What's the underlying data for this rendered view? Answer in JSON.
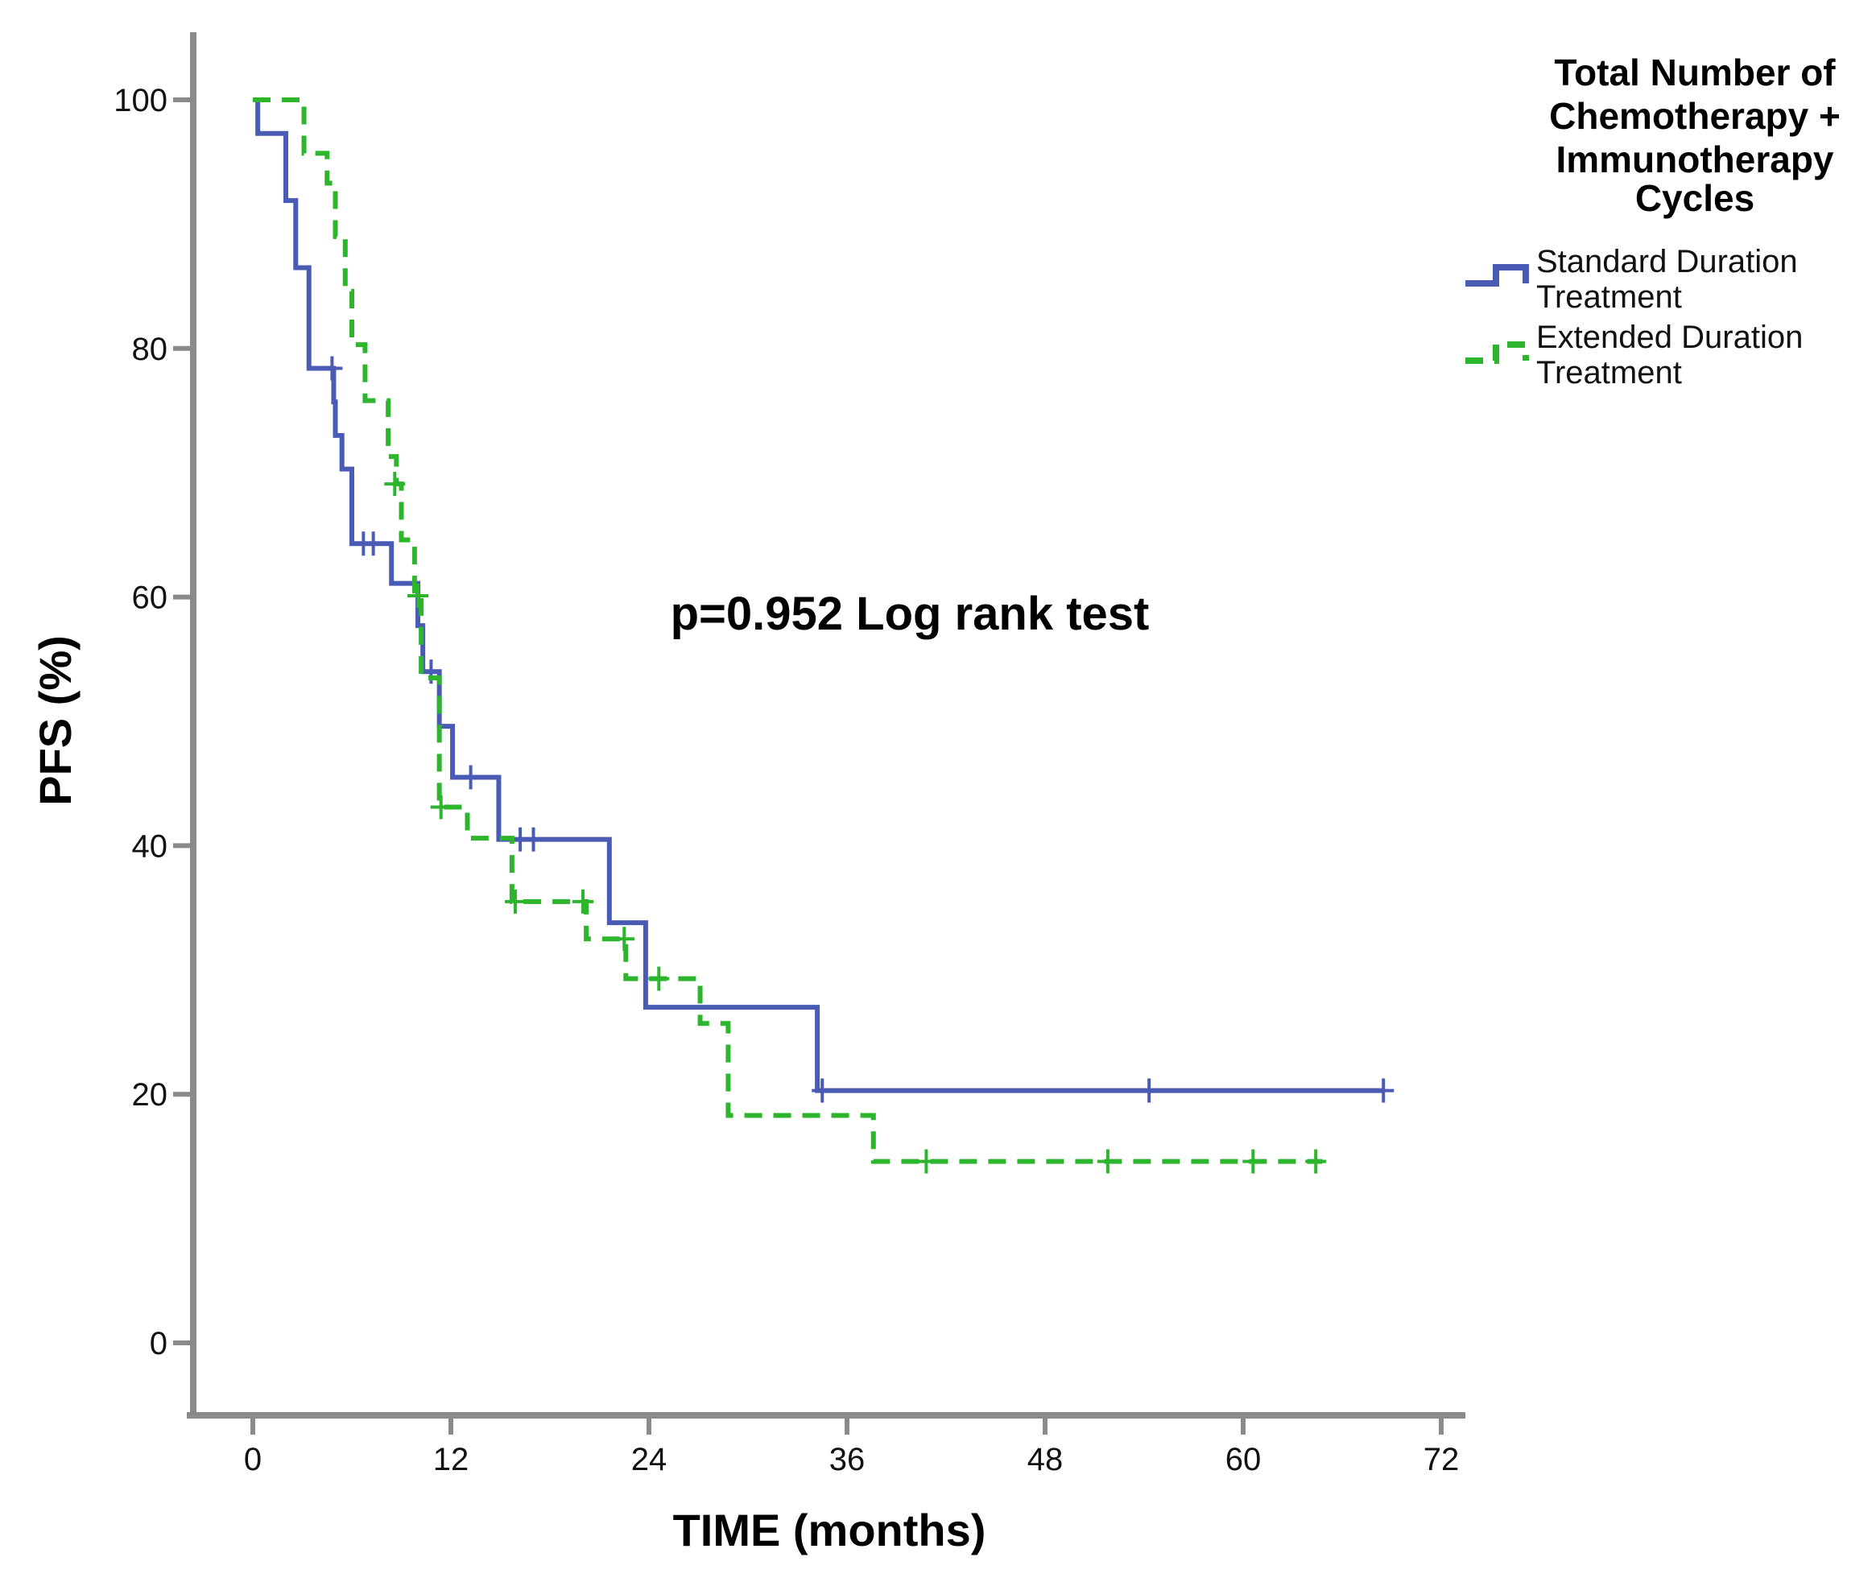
{
  "chart_data": {
    "type": "line",
    "subtype": "kaplan-meier",
    "xlabel": "TIME (months)",
    "ylabel": "PFS (%)",
    "xlim": [
      0,
      72
    ],
    "ylim": [
      0,
      100
    ],
    "xticks": [
      "0",
      "12",
      "24",
      "36",
      "48",
      "60",
      "72"
    ],
    "yticks": [
      "0",
      "20",
      "40",
      "60",
      "80",
      "100"
    ],
    "annotation": "p=0.952 Log rank test",
    "legend": {
      "title_lines": [
        "Total Number of",
        "Chemotherapy +",
        "Immunotherapy",
        "Cycles"
      ],
      "placement": "right"
    },
    "series": [
      {
        "name_lines": [
          "Standard Duration",
          "Treatment"
        ],
        "color": "#4a5bb5",
        "style": "solid",
        "steps": [
          [
            0,
            100
          ],
          [
            0.3,
            97.3
          ],
          [
            2.0,
            94.6
          ],
          [
            2.0,
            91.9
          ],
          [
            2.6,
            89.2
          ],
          [
            2.6,
            86.5
          ],
          [
            3.4,
            83.8
          ],
          [
            3.4,
            78.4
          ],
          [
            4.9,
            75.7
          ],
          [
            5.0,
            73.0
          ],
          [
            5.4,
            70.3
          ],
          [
            6.0,
            67.6
          ],
          [
            6.0,
            64.3
          ],
          [
            8.4,
            61.1
          ],
          [
            10.0,
            57.7
          ],
          [
            10.3,
            54.0
          ],
          [
            11.3,
            49.6
          ],
          [
            12.1,
            45.5
          ],
          [
            14.9,
            40.5
          ],
          [
            21.6,
            33.8
          ],
          [
            23.8,
            27.0
          ],
          [
            34.2,
            20.3
          ],
          [
            68.5,
            20.3
          ]
        ],
        "censored": [
          [
            4.8,
            78.4
          ],
          [
            6.7,
            64.3
          ],
          [
            7.3,
            64.3
          ],
          [
            10.8,
            54.0
          ],
          [
            13.2,
            45.5
          ],
          [
            16.2,
            40.5
          ],
          [
            17.0,
            40.5
          ],
          [
            34.5,
            20.3
          ],
          [
            54.3,
            20.3
          ],
          [
            68.5,
            20.3
          ]
        ]
      },
      {
        "name_lines": [
          "Extended Duration",
          "Treatment"
        ],
        "color": "#2db52d",
        "style": "dashed",
        "steps": [
          [
            0,
            100
          ],
          [
            3.1,
            95.7
          ],
          [
            4.5,
            93.3
          ],
          [
            5.0,
            89.0
          ],
          [
            5.6,
            84.6
          ],
          [
            6.0,
            80.3
          ],
          [
            6.8,
            75.8
          ],
          [
            8.2,
            71.3
          ],
          [
            8.7,
            69.1
          ],
          [
            9.0,
            64.6
          ],
          [
            9.8,
            60.1
          ],
          [
            10.2,
            53.5
          ],
          [
            11.3,
            43.1
          ],
          [
            13.0,
            40.6
          ],
          [
            15.7,
            35.5
          ],
          [
            20.2,
            32.5
          ],
          [
            22.6,
            29.3
          ],
          [
            27.1,
            25.7
          ],
          [
            28.8,
            18.3
          ],
          [
            37.6,
            14.6
          ],
          [
            64.8,
            14.6
          ]
        ],
        "censored": [
          [
            8.6,
            69.1
          ],
          [
            10.0,
            60.1
          ],
          [
            11.4,
            43.1
          ],
          [
            15.9,
            35.5
          ],
          [
            20.0,
            35.5
          ],
          [
            22.5,
            32.5
          ],
          [
            24.6,
            29.3
          ],
          [
            40.8,
            14.6
          ],
          [
            51.8,
            14.6
          ],
          [
            60.6,
            14.6
          ],
          [
            64.4,
            14.6
          ]
        ]
      }
    ]
  }
}
